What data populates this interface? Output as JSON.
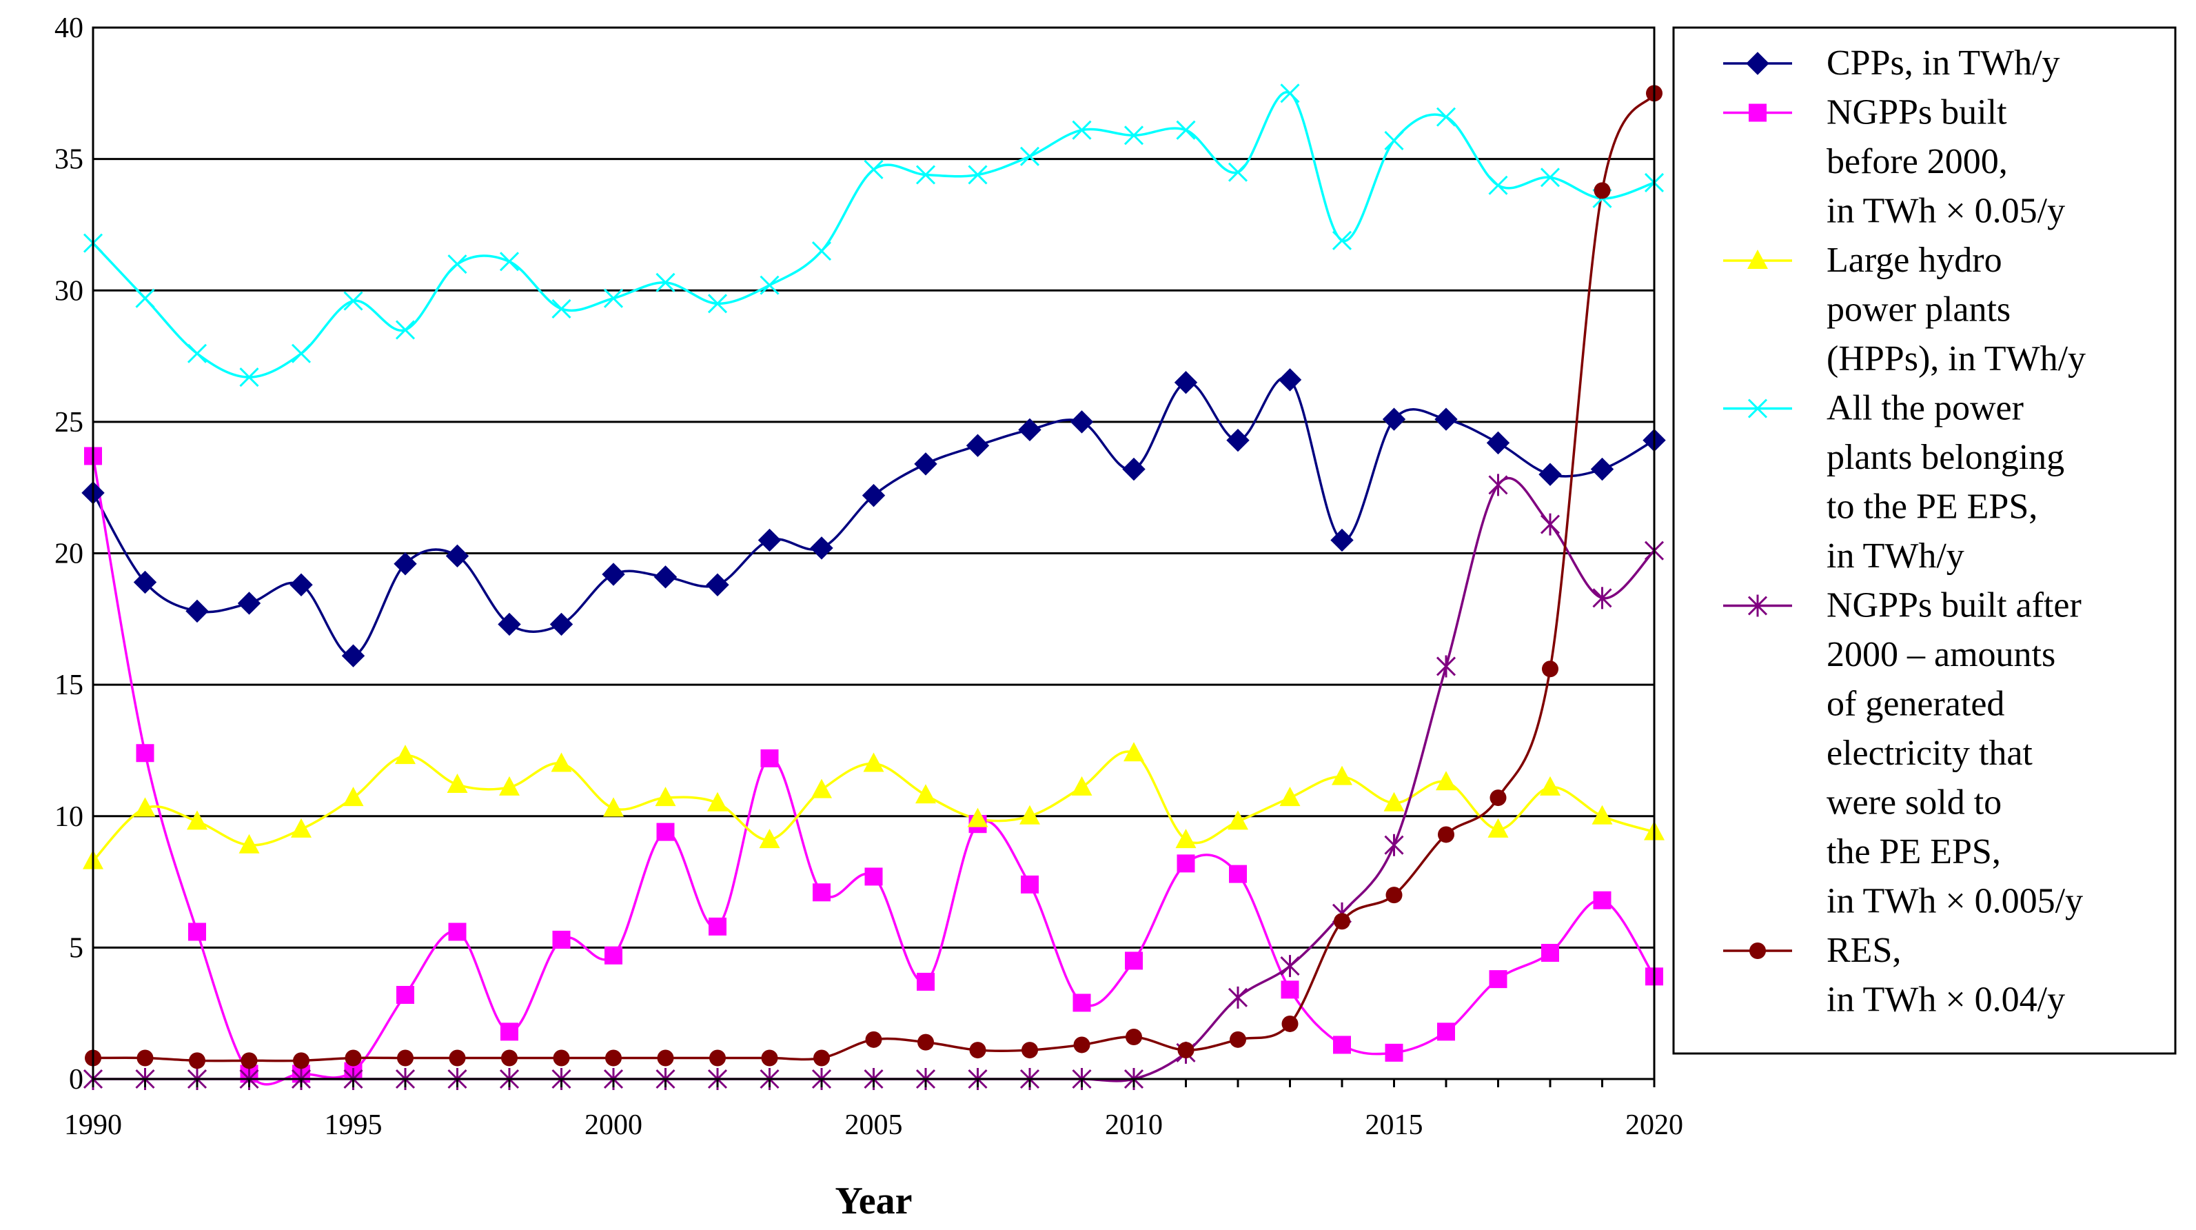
{
  "chart_data": {
    "type": "line",
    "title": "",
    "xlabel": "Year",
    "ylabel": "",
    "xlim": [
      1990,
      2020
    ],
    "ylim": [
      0,
      40
    ],
    "grid": true,
    "legend_position": "right",
    "x_ticks": [
      1990,
      1995,
      2000,
      2005,
      2010,
      2015,
      2020
    ],
    "y_ticks": [
      0,
      5,
      10,
      15,
      20,
      25,
      30,
      35,
      40
    ],
    "x": [
      1990,
      1991,
      1992,
      1993,
      1994,
      1995,
      1996,
      1997,
      1998,
      1999,
      2000,
      2001,
      2002,
      2003,
      2004,
      2005,
      2006,
      2007,
      2008,
      2009,
      2010,
      2011,
      2012,
      2013,
      2014,
      2015,
      2016,
      2017,
      2018,
      2019,
      2020
    ],
    "series": [
      {
        "name": "CPPs, in TWh/y",
        "legend_lines": [
          "CPPs, in TWh/y"
        ],
        "color": "#000080",
        "marker": "diamond",
        "values": [
          22.3,
          18.9,
          17.8,
          18.1,
          18.8,
          16.1,
          19.6,
          19.9,
          17.3,
          17.3,
          19.2,
          19.1,
          18.8,
          20.5,
          20.2,
          22.2,
          23.4,
          24.1,
          24.7,
          25.0,
          23.2,
          26.5,
          24.3,
          26.6,
          20.5,
          25.1,
          25.1,
          24.2,
          23.0,
          23.2,
          24.3
        ]
      },
      {
        "name": "NGPPs built before 2000, in TWh × 0.05/y",
        "legend_lines": [
          "NGPPs built",
          "before 2000,",
          "in TWh × 0.05/y"
        ],
        "color": "#FF00FF",
        "marker": "square",
        "values": [
          23.7,
          12.4,
          5.6,
          0.2,
          0.2,
          0.3,
          3.2,
          5.6,
          1.8,
          5.3,
          4.7,
          9.4,
          5.8,
          12.2,
          7.1,
          7.7,
          3.7,
          9.7,
          7.4,
          2.9,
          4.5,
          8.2,
          7.8,
          3.4,
          1.3,
          1.0,
          1.8,
          3.8,
          4.8,
          6.8,
          3.9
        ]
      },
      {
        "name": "Large hydro power plants (HPPs), in TWh/y",
        "legend_lines": [
          "Large hydro",
          "power plants",
          "(HPPs), in TWh/y"
        ],
        "color": "#FFFF00",
        "marker": "triangle",
        "values": [
          8.3,
          10.3,
          9.8,
          8.9,
          9.5,
          10.7,
          12.3,
          11.2,
          11.1,
          12.0,
          10.3,
          10.7,
          10.5,
          9.1,
          11.0,
          12.0,
          10.8,
          9.9,
          10.0,
          11.1,
          12.4,
          9.1,
          9.8,
          10.7,
          11.5,
          10.5,
          11.3,
          9.5,
          11.1,
          10.0,
          9.4
        ]
      },
      {
        "name": "All the power plants belonging to the PE EPS, in TWh/y",
        "legend_lines": [
          "All the power",
          "plants belonging",
          "to the PE EPS,",
          "in TWh/y"
        ],
        "color": "#00FFFF",
        "marker": "x",
        "values": [
          31.8,
          29.7,
          27.6,
          26.7,
          27.6,
          29.6,
          28.5,
          31.0,
          31.1,
          29.3,
          29.7,
          30.3,
          29.5,
          30.2,
          31.5,
          34.6,
          34.4,
          34.4,
          35.1,
          36.1,
          35.9,
          36.1,
          34.5,
          37.5,
          31.9,
          35.7,
          36.6,
          34.0,
          34.3,
          33.5,
          34.1
        ]
      },
      {
        "name": "NGPPs built after 2000 – amounts of generated electricity that were sold to the PE EPS, in TWh × 0.005/y",
        "legend_lines": [
          "NGPPs built after",
          "2000 – amounts",
          "of generated",
          "electricity that",
          "were sold to",
          "the PE EPS,",
          "in TWh × 0.005/y"
        ],
        "color": "#800080",
        "marker": "star",
        "values": [
          0,
          0,
          0,
          0,
          0,
          0,
          0,
          0,
          0,
          0,
          0,
          0,
          0,
          0,
          0,
          0,
          0,
          0,
          0,
          0,
          0,
          1.0,
          3.1,
          4.3,
          6.3,
          8.9,
          15.7,
          22.6,
          21.1,
          18.3,
          20.1
        ]
      },
      {
        "name": "RES, in TWh × 0.04/y",
        "legend_lines": [
          "RES,",
          "in TWh × 0.04/y"
        ],
        "color": "#800000",
        "marker": "circle",
        "values": [
          0.8,
          0.8,
          0.7,
          0.7,
          0.7,
          0.8,
          0.8,
          0.8,
          0.8,
          0.8,
          0.8,
          0.8,
          0.8,
          0.8,
          0.8,
          1.5,
          1.4,
          1.1,
          1.1,
          1.3,
          1.6,
          1.1,
          1.5,
          2.1,
          6.0,
          7.0,
          9.3,
          10.7,
          15.6,
          33.8,
          37.5
        ]
      }
    ]
  }
}
